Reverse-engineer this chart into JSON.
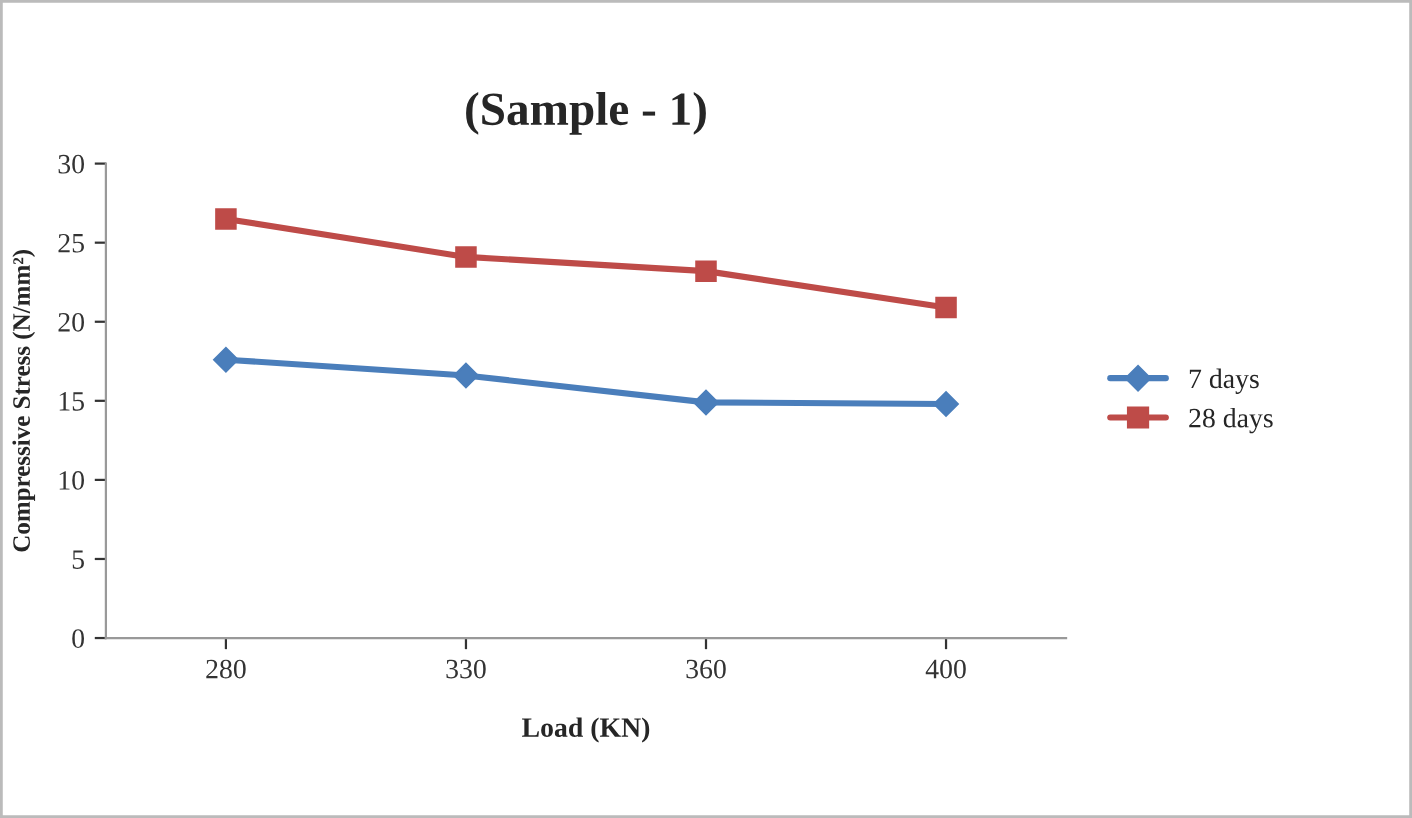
{
  "chart_data": {
    "type": "line",
    "title": "(Sample - 1)",
    "xlabel": "Load (KN)",
    "ylabel": "Compressive Stress (N/mm²)",
    "categories": [
      "280",
      "330",
      "360",
      "400"
    ],
    "series": [
      {
        "name": "7 days",
        "color": "#4a7ebb",
        "marker": "diamond",
        "values": [
          17.6,
          16.6,
          14.9,
          14.8
        ]
      },
      {
        "name": "28 days",
        "color": "#be4b48",
        "marker": "square",
        "values": [
          26.5,
          24.1,
          23.2,
          20.9
        ]
      }
    ],
    "ylim": [
      0,
      30
    ],
    "yticks": [
      0,
      5,
      10,
      15,
      20,
      25,
      30
    ],
    "grid": false,
    "legend": "right",
    "line_style": "solid"
  }
}
